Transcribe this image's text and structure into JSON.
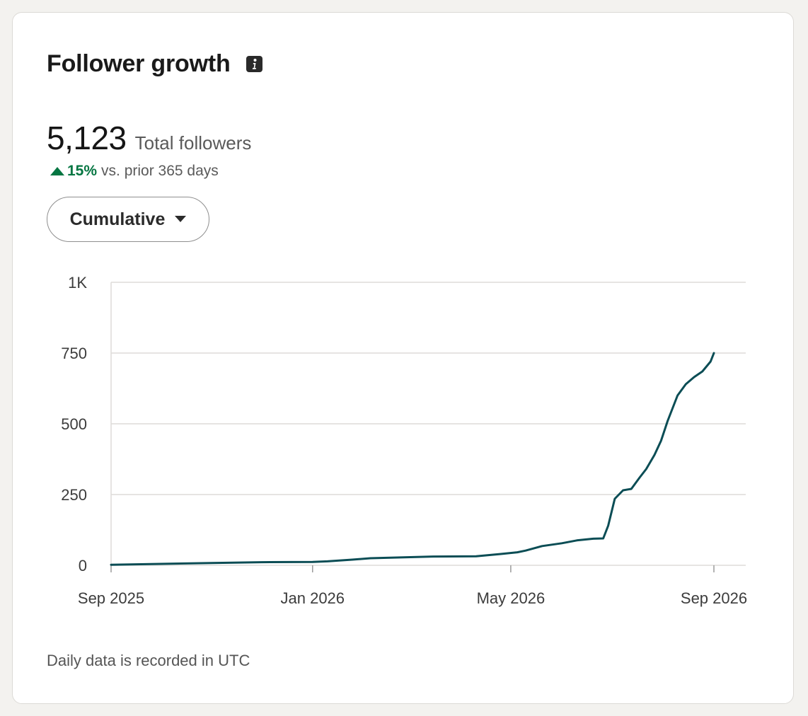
{
  "card": {
    "title": "Follower growth",
    "info_icon": "info-icon",
    "total_value": "5,123",
    "total_label": "Total followers",
    "change_value": "15%",
    "change_label": "vs. prior 365 days",
    "change_icon": "up-triangle-icon",
    "dropdown_label": "Cumulative",
    "dropdown_icon": "caret-down-icon",
    "footnote": "Daily data is recorded in UTC"
  },
  "colors": {
    "line": "#0b4d55",
    "positive": "#057642",
    "grid": "#dedcd9"
  },
  "chart_data": {
    "type": "line",
    "title": "",
    "xlabel": "",
    "ylabel": "",
    "ylim": [
      0,
      1000
    ],
    "y_ticks": [
      {
        "value": 0,
        "label": "0"
      },
      {
        "value": 250,
        "label": "250"
      },
      {
        "value": 500,
        "label": "500"
      },
      {
        "value": 750,
        "label": "750"
      },
      {
        "value": 1000,
        "label": "1K"
      }
    ],
    "x_ticks": [
      {
        "value": "2025-09-01",
        "label": "Sep 2025"
      },
      {
        "value": "2026-01-01",
        "label": "Jan 2026"
      },
      {
        "value": "2026-05-01",
        "label": "May 2026"
      },
      {
        "value": "2026-09-01",
        "label": "Sep 2026"
      }
    ],
    "xlim": [
      "2025-09-01",
      "2026-09-01"
    ],
    "grid": true,
    "series": [
      {
        "x": [
          "2025-09-01",
          "2025-10-01",
          "2025-11-01",
          "2025-12-01",
          "2026-01-01",
          "2026-01-10",
          "2026-01-25",
          "2026-02-05",
          "2026-02-25",
          "2026-03-15",
          "2026-04-10",
          "2026-04-25",
          "2026-05-05",
          "2026-05-10",
          "2026-05-20",
          "2026-06-01",
          "2026-06-10",
          "2026-06-20",
          "2026-06-26",
          "2026-06-29",
          "2026-07-03",
          "2026-07-08",
          "2026-07-13",
          "2026-07-18",
          "2026-07-22",
          "2026-07-27",
          "2026-07-31",
          "2026-08-04",
          "2026-08-10",
          "2026-08-15",
          "2026-08-20",
          "2026-08-25",
          "2026-08-30",
          "2026-09-01"
        ],
        "y": [
          2,
          5,
          8,
          11,
          12,
          14,
          20,
          25,
          28,
          31,
          32,
          40,
          46,
          52,
          68,
          78,
          88,
          94,
          95,
          140,
          235,
          265,
          270,
          310,
          340,
          390,
          440,
          510,
          600,
          640,
          665,
          685,
          720,
          750
        ]
      }
    ]
  }
}
